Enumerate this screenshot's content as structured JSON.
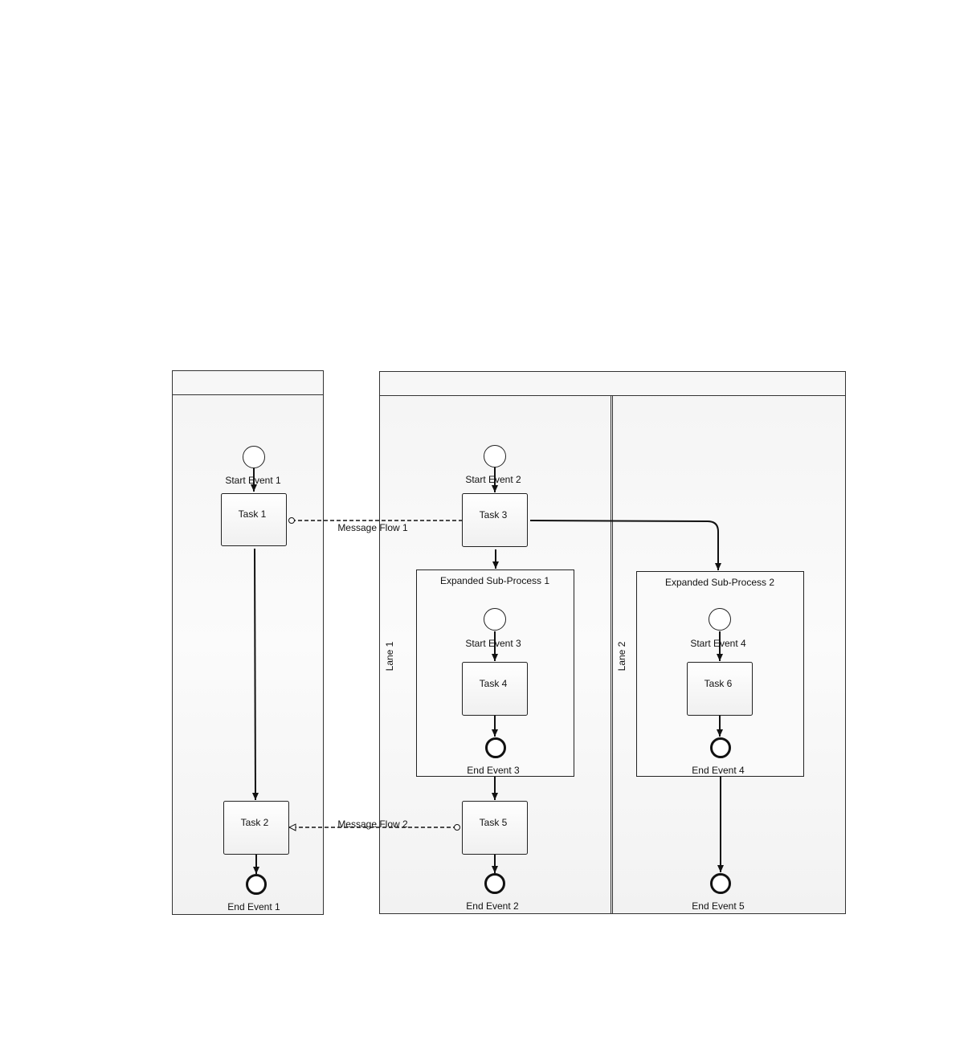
{
  "pools": {
    "pool1": {
      "header": ""
    },
    "pool2": {
      "header": ""
    }
  },
  "lanes": {
    "lane1": "Lane 1",
    "lane2": "Lane 2"
  },
  "subprocesses": {
    "sp1": "Expanded Sub-Process 1",
    "sp2": "Expanded Sub-Process 2"
  },
  "tasks": {
    "task1": "Task 1",
    "task2": "Task 2",
    "task3": "Task 3",
    "task4": "Task 4",
    "task5": "Task 5",
    "task6": "Task 6"
  },
  "events": {
    "start1": "Start Event 1",
    "start2": "Start Event 2",
    "start3": "Start Event 3",
    "start4": "Start Event 4",
    "end1": "End Event 1",
    "end2": "End Event 2",
    "end3": "End Event 3",
    "end4": "End Event 4",
    "end5": "End Event 5"
  },
  "flows": {
    "message1": "Message Flow 1",
    "message2": "Message Flow 2"
  }
}
